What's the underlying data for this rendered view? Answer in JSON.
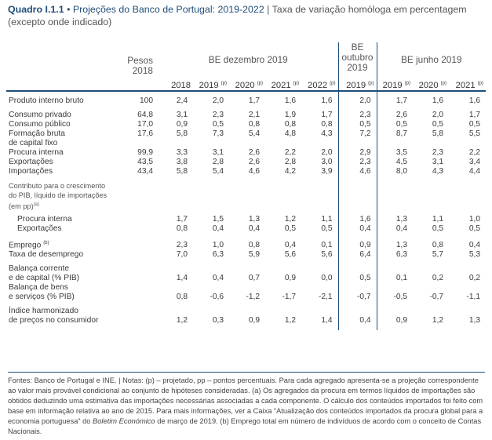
{
  "title": {
    "label": "Quadro I.1.1",
    "bullet": "•",
    "main": "Projeções do Banco de Portugal: 2019-2022",
    "divider": "|",
    "subtitle": "Taxa de variação homóloga em percentagem (excepto onde indicado)"
  },
  "header": {
    "pesos_line1": "Pesos",
    "pesos_line2": "2018",
    "group_dec": "BE dezembro 2019",
    "group_oct_l1": "BE",
    "group_oct_l2": "outubro",
    "group_oct_l3": "2019",
    "group_jun": "BE junho 2019"
  },
  "years": [
    {
      "year": "2018",
      "sup": ""
    },
    {
      "year": "2019",
      "sup": "(p)"
    },
    {
      "year": "2020",
      "sup": "(p)"
    },
    {
      "year": "2021",
      "sup": "(p)"
    },
    {
      "year": "2022",
      "sup": "(p)"
    },
    {
      "year": "2019",
      "sup": "(p)"
    },
    {
      "year": "2019",
      "sup": "(p)"
    },
    {
      "year": "2020",
      "sup": "(p)"
    },
    {
      "year": "2021",
      "sup": "(p)"
    }
  ],
  "rows": [
    {
      "label": "Produto interno bruto",
      "peso": "100",
      "v": [
        "2,4",
        "2,0",
        "1,7",
        "1,6",
        "1,6",
        "2,0",
        "1,7",
        "1,6",
        "1,6"
      ],
      "gap_after": true
    },
    {
      "label": "Consumo privado",
      "peso": "64,8",
      "v": [
        "3,1",
        "2,3",
        "2,1",
        "1,9",
        "1,7",
        "2,3",
        "2,6",
        "2,0",
        "1,7"
      ]
    },
    {
      "label": "Consumo público",
      "peso": "17,0",
      "v": [
        "0,9",
        "0,5",
        "0,8",
        "0,8",
        "0,8",
        "0,5",
        "0,5",
        "0,5",
        "0,5"
      ]
    },
    {
      "label": "Formação bruta",
      "peso": "17,6",
      "v": [
        "5,8",
        "7,3",
        "5,4",
        "4,8",
        "4,3",
        "7,2",
        "8,7",
        "5,8",
        "5,5"
      ]
    },
    {
      "label": "de capital fixo",
      "peso": "",
      "v": [
        "",
        "",
        "",
        "",
        "",
        "",
        "",
        "",
        ""
      ]
    },
    {
      "label": "Procura interna",
      "peso": "99,9",
      "v": [
        "3,3",
        "3,1",
        "2,6",
        "2,2",
        "2,0",
        "2,9",
        "3,5",
        "2,3",
        "2,2"
      ]
    },
    {
      "label": "Exportações",
      "peso": "43,5",
      "v": [
        "3,8",
        "2,8",
        "2,6",
        "2,8",
        "3,0",
        "2,3",
        "4,5",
        "3,1",
        "3,4"
      ]
    },
    {
      "label": "Importações",
      "peso": "43,4",
      "v": [
        "5,8",
        "5,4",
        "4,6",
        "4,2",
        "3,9",
        "4,6",
        "8,0",
        "4,3",
        "4,4"
      ],
      "gap_after": true
    }
  ],
  "contrib": {
    "label_l1": "Contributo para o crescimento",
    "label_l2": "do PIB, líquido de importações",
    "label_l3": "(em pp)",
    "label_sup": "(a)",
    "rows": [
      {
        "label": "Procura interna",
        "v": [
          "1,7",
          "1,5",
          "1,3",
          "1,2",
          "1,1",
          "1,6",
          "1,3",
          "1,1",
          "1,0"
        ]
      },
      {
        "label": "Exportações",
        "v": [
          "0,8",
          "0,4",
          "0,4",
          "0,5",
          "0,5",
          "0,4",
          "0,4",
          "0,5",
          "0,5"
        ]
      }
    ]
  },
  "emprego": {
    "label": "Emprego",
    "sup": "(b)",
    "v": [
      "2,3",
      "1,0",
      "0,8",
      "0,4",
      "0,1",
      "0,9",
      "1,3",
      "0,8",
      "0,4"
    ]
  },
  "desemprego": {
    "label": "Taxa de desemprego",
    "v": [
      "7,0",
      "6,3",
      "5,9",
      "5,6",
      "5,6",
      "6,4",
      "6,3",
      "5,7",
      "5,3"
    ]
  },
  "balanca_corrente": {
    "label_l1": "Balança corrente",
    "label_l2": "e de capital (% PIB)",
    "v": [
      "1,4",
      "0,4",
      "0,7",
      "0,9",
      "0,0",
      "0,5",
      "0,1",
      "0,2",
      "0,2"
    ]
  },
  "balanca_bens": {
    "label_l1": "Balança de bens",
    "label_l2": "e serviços (% PIB)",
    "v": [
      "0,8",
      "-0,6",
      "-1,2",
      "-1,7",
      "-2,1",
      "-0,7",
      "-0,5",
      "-0,7",
      "-1,1"
    ]
  },
  "ihpc": {
    "label_l1": "Índice harmonizado",
    "label_l2": "de preços no consumidor",
    "v": [
      "1,2",
      "0,3",
      "0,9",
      "1,2",
      "1,4",
      "0,4",
      "0,9",
      "1,2",
      "1,3"
    ]
  },
  "footnote": {
    "part1": "Fontes: Banco de Portugal e INE.  |  Notas: (p) – projetado, pp – pontos percentuais. Para cada agregado apresenta-se a projeção correspondente ao valor mais provável condicional ao conjunto de hipóteses consideradas. (a) Os agregados da procura em termos líquidos de importações são obtidos deduzindo uma estimativa das importações necessárias associadas a cada componente. O cálculo dos conteúdos importados foi feito com base em informação relativa ao ano de 2015. Para mais informações, ver a Caixa “Atualização dos conteúdos importados da procura global para a economia portuguesa” do ",
    "italic": "Boletim Económico",
    "part2": " de março de 2019. (b) Emprego total em número de indivíduos de acordo com o conceito de Contas Nacionais."
  }
}
